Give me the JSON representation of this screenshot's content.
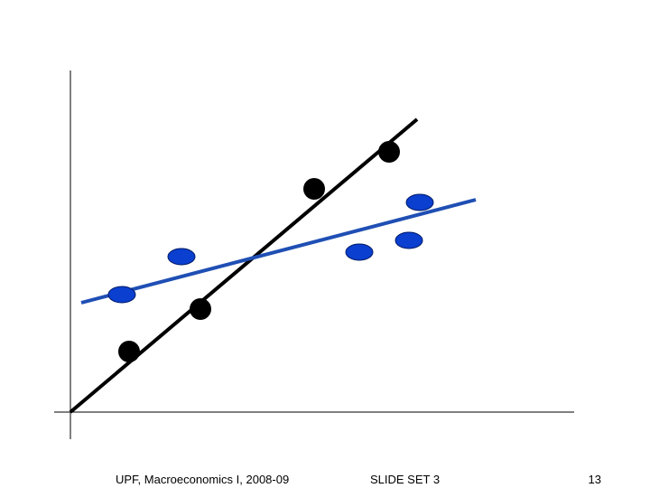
{
  "footer": {
    "course": "UPF, Macroeconomics I, 2008-09",
    "slide_set": "SLIDE SET 3",
    "page": "13"
  }
}
